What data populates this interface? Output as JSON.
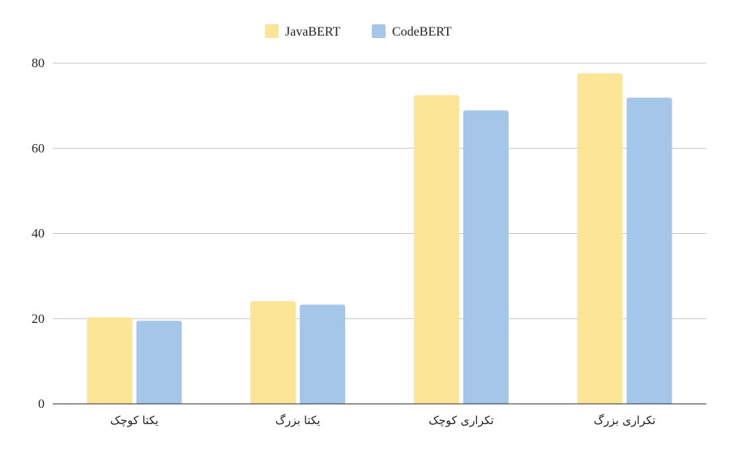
{
  "chart_data": {
    "type": "bar",
    "title": "",
    "xlabel": "",
    "ylabel": "",
    "categories": [
      "یکتا کوچک",
      "یکتا بزرگ",
      "تکراری کوچک",
      "تکراری بزرگ"
    ],
    "series": [
      {
        "name": "JavaBERT",
        "color": "#fde597",
        "values": [
          20.3,
          24.1,
          72.5,
          77.6
        ]
      },
      {
        "name": "CodeBERT",
        "color": "#a3c6e9",
        "values": [
          19.5,
          23.3,
          68.9,
          71.9
        ]
      }
    ],
    "ylim": [
      0,
      80
    ],
    "yticks": [
      0,
      20,
      40,
      60,
      80
    ],
    "grid": true,
    "legend_position": "top-center"
  }
}
